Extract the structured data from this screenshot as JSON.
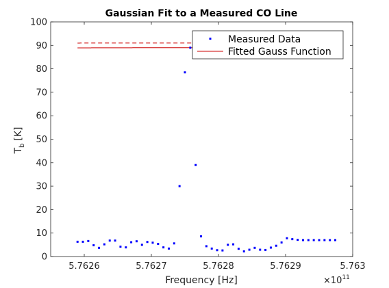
{
  "chart_data": {
    "type": "scatter",
    "title": "Gaussian Fit to a Measured CO Line",
    "xlabel": "Frequency [Hz]",
    "ylabel_main": "T",
    "ylabel_sub": "b",
    "ylabel_unit": "[K]",
    "xlim": [
      576255000000,
      576300000000
    ],
    "ylim": [
      0,
      100
    ],
    "x_ticks": [
      576260000000,
      576270000000,
      576280000000,
      576290000000,
      576300000000
    ],
    "x_tick_labels": [
      "5.7626",
      "5.7627",
      "5.7628",
      "5.7629",
      "5.763"
    ],
    "x_exponent_base": "×10",
    "x_exponent_power": "11",
    "y_ticks": [
      0,
      10,
      20,
      30,
      40,
      50,
      60,
      70,
      80,
      90,
      100
    ],
    "y_tick_labels": [
      "0",
      "10",
      "20",
      "30",
      "40",
      "50",
      "60",
      "70",
      "80",
      "90",
      "100"
    ],
    "legend_position": "top-right",
    "series": [
      {
        "name": "Measured Data",
        "kind": "markers",
        "color": "#0000ff",
        "x": [
          576259000000,
          576259800000,
          576260600000,
          576261400000,
          576262200000,
          576263000000,
          576263800000,
          576264600000,
          576265400000,
          576266200000,
          576267000000,
          576267800000,
          576268600000,
          576269400000,
          576270200000,
          576271000000,
          576271800000,
          576272600000,
          576273400000,
          576274200000,
          576275000000,
          576275800000,
          576276600000,
          576277400000,
          576278200000,
          576279000000,
          576279800000,
          576280600000,
          576281400000,
          576282200000,
          576283000000,
          576283800000,
          576284600000,
          576285400000,
          576286200000,
          576287000000,
          576287800000,
          576288600000,
          576289400000,
          576290200000,
          576291000000,
          576291800000,
          576292600000,
          576293400000,
          576294200000,
          576295000000,
          576295800000,
          576296600000,
          576297400000
        ],
        "y": [
          6.3,
          6.3,
          6.6,
          4.8,
          3.7,
          5.2,
          6.8,
          6.8,
          4.2,
          3.9,
          6.1,
          6.5,
          5.0,
          6.2,
          5.9,
          5.4,
          3.9,
          3.4,
          5.6,
          30.0,
          78.5,
          89.0,
          39.0,
          8.6,
          4.4,
          3.4,
          2.7,
          2.6,
          5.0,
          5.2,
          3.3,
          2.2,
          2.9,
          3.7,
          2.9,
          2.8,
          3.8,
          4.6,
          6.0,
          7.8,
          7.4,
          7.1,
          7.0,
          7.0,
          7.0,
          7.0,
          7.0,
          7.0,
          7.0
        ]
      },
      {
        "name": "Fitted Gauss Function",
        "kind": "solid-line",
        "color": "#cc0000",
        "x_range": [
          576259000000,
          576297400000
        ],
        "peak": 89.0,
        "center": 576278300000,
        "sigma": 470000000
      },
      {
        "name": "",
        "kind": "dashed-line",
        "color": "#cc0000",
        "x_range": [
          576259000000,
          576297400000
        ],
        "peak": 91.0,
        "center": 576268900000,
        "sigma": 470000000
      }
    ]
  }
}
